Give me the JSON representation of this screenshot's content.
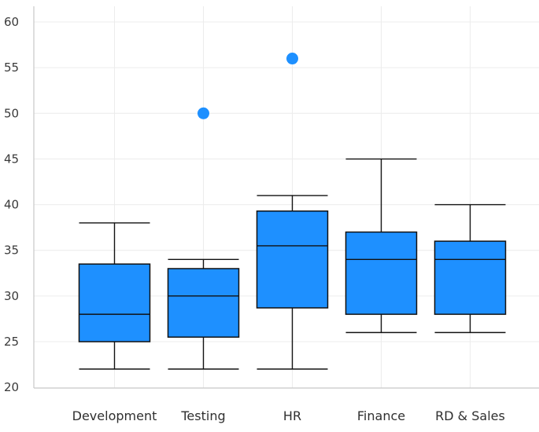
{
  "chart_data": {
    "type": "boxplot",
    "categories": [
      "Development",
      "Testing",
      "HR",
      "Finance",
      "RD & Sales"
    ],
    "boxes": [
      {
        "min": 22,
        "q1": 25,
        "median": 28,
        "q3": 33.5,
        "max": 38,
        "outliers": []
      },
      {
        "min": 22,
        "q1": 25.5,
        "median": 30,
        "q3": 33,
        "max": 34,
        "outliers": [
          50
        ]
      },
      {
        "min": 22,
        "q1": 28.7,
        "median": 35.5,
        "q3": 39.3,
        "max": 41,
        "outliers": [
          56
        ]
      },
      {
        "min": 26,
        "q1": 28,
        "median": 34,
        "q3": 37,
        "max": 45,
        "outliers": []
      },
      {
        "min": 26,
        "q1": 28,
        "median": 34,
        "q3": 36,
        "max": 40,
        "outliers": []
      }
    ],
    "y_ticks": [
      "20",
      "25",
      "30",
      "35",
      "40",
      "45",
      "50",
      "55",
      "60"
    ],
    "ylim": [
      19,
      61
    ],
    "grid": true,
    "colors": {
      "box_fill": "#1E90FF",
      "outlier": "#1E90FF",
      "stroke": "#111111"
    }
  }
}
